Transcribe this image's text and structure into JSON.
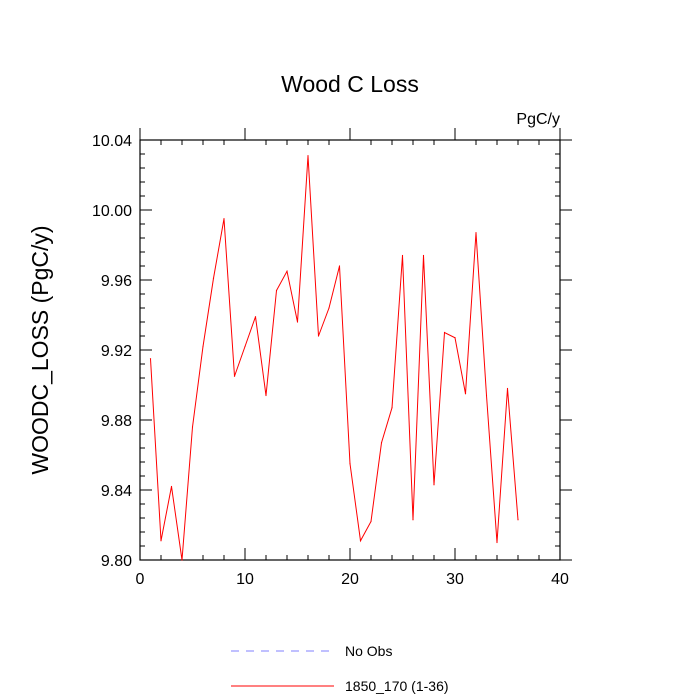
{
  "chart_data": {
    "type": "line",
    "title": "Wood C Loss",
    "units": "PgC/y",
    "xlabel": "",
    "ylabel": "WOODC_LOSS  (PgC/y)",
    "xlim": [
      0,
      40
    ],
    "ylim": [
      9.8,
      10.04
    ],
    "x_ticks": [
      0,
      10,
      20,
      30,
      40
    ],
    "y_ticks": [
      9.8,
      9.84,
      9.88,
      9.92,
      9.96,
      10.0,
      10.04
    ],
    "x_tick_labels": [
      "0",
      "10",
      "20",
      "30",
      "40"
    ],
    "y_tick_labels": [
      "9.80",
      "9.84",
      "9.88",
      "9.92",
      "9.96",
      "10.00",
      "10.04"
    ],
    "grid": false,
    "legend_position": "bottom",
    "series": [
      {
        "name": "No Obs",
        "color": "#8080ff",
        "dash": "dashed",
        "x": [],
        "values": []
      },
      {
        "name": "1850_170 (1-36)",
        "color": "#ff0000",
        "dash": "solid",
        "x": [
          1,
          2,
          3,
          4,
          5,
          6,
          7,
          8,
          9,
          10,
          11,
          12,
          13,
          14,
          15,
          16,
          17,
          18,
          19,
          20,
          21,
          22,
          23,
          24,
          25,
          26,
          27,
          28,
          29,
          30,
          31,
          32,
          33,
          34,
          35,
          36
        ],
        "values": [
          9.915,
          9.811,
          9.842,
          9.8,
          9.876,
          9.922,
          9.961,
          9.995,
          9.905,
          9.922,
          9.939,
          9.894,
          9.954,
          9.965,
          9.936,
          10.031,
          9.928,
          9.944,
          9.968,
          9.855,
          9.811,
          9.822,
          9.867,
          9.887,
          9.974,
          9.823,
          9.974,
          9.843,
          9.93,
          9.927,
          9.895,
          9.987,
          9.894,
          9.81,
          9.898,
          9.823
        ]
      }
    ]
  }
}
